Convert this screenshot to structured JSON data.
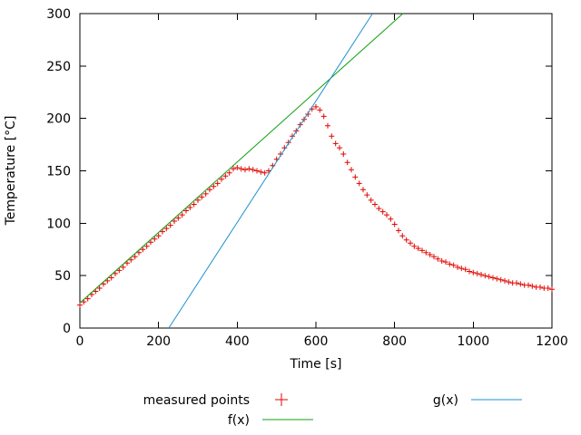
{
  "chart_data": {
    "type": "scatter+line",
    "title": "",
    "xlabel": "Time [s]",
    "ylabel": "Temperature [°C]",
    "xlim": [
      0,
      1200
    ],
    "ylim": [
      0,
      300
    ],
    "xticks": [
      0,
      200,
      400,
      600,
      800,
      1000,
      1200
    ],
    "yticks": [
      0,
      50,
      100,
      150,
      200,
      250,
      300
    ],
    "grid": false,
    "legend_position": "below-center",
    "legend": [
      {
        "label": "measured points",
        "sample": "marker-plus",
        "color": "#e10600"
      },
      {
        "label": "f(x)",
        "sample": "line",
        "color": "#0fa00f"
      },
      {
        "label": "g(x)",
        "sample": "line",
        "color": "#1e90cf"
      }
    ],
    "series": [
      {
        "name": "measured points",
        "type": "scatter",
        "marker": "+",
        "color": "#e10600",
        "points": [
          [
            0,
            22
          ],
          [
            10,
            25
          ],
          [
            20,
            28
          ],
          [
            30,
            32
          ],
          [
            40,
            35
          ],
          [
            50,
            38
          ],
          [
            60,
            42
          ],
          [
            70,
            45
          ],
          [
            80,
            48
          ],
          [
            90,
            52
          ],
          [
            100,
            55
          ],
          [
            110,
            58
          ],
          [
            120,
            62
          ],
          [
            130,
            65
          ],
          [
            140,
            68
          ],
          [
            150,
            72
          ],
          [
            160,
            75
          ],
          [
            170,
            78
          ],
          [
            180,
            82
          ],
          [
            190,
            85
          ],
          [
            200,
            88
          ],
          [
            210,
            92
          ],
          [
            220,
            95
          ],
          [
            230,
            98
          ],
          [
            240,
            102
          ],
          [
            250,
            105
          ],
          [
            260,
            108
          ],
          [
            270,
            112
          ],
          [
            280,
            115
          ],
          [
            290,
            118
          ],
          [
            300,
            122
          ],
          [
            310,
            125
          ],
          [
            320,
            128
          ],
          [
            330,
            132
          ],
          [
            340,
            135
          ],
          [
            350,
            138
          ],
          [
            360,
            142
          ],
          [
            370,
            145
          ],
          [
            380,
            148
          ],
          [
            390,
            152
          ],
          [
            400,
            153
          ],
          [
            410,
            152
          ],
          [
            420,
            151
          ],
          [
            430,
            152
          ],
          [
            440,
            151
          ],
          [
            450,
            150
          ],
          [
            460,
            149
          ],
          [
            470,
            148
          ],
          [
            480,
            150
          ],
          [
            490,
            155
          ],
          [
            500,
            161
          ],
          [
            510,
            166
          ],
          [
            520,
            172
          ],
          [
            530,
            177
          ],
          [
            540,
            183
          ],
          [
            550,
            188
          ],
          [
            560,
            194
          ],
          [
            570,
            199
          ],
          [
            580,
            204
          ],
          [
            590,
            209
          ],
          [
            600,
            211
          ],
          [
            610,
            208
          ],
          [
            620,
            202
          ],
          [
            630,
            193
          ],
          [
            640,
            183
          ],
          [
            650,
            176
          ],
          [
            660,
            172
          ],
          [
            670,
            166
          ],
          [
            680,
            158
          ],
          [
            690,
            151
          ],
          [
            700,
            144
          ],
          [
            710,
            138
          ],
          [
            720,
            132
          ],
          [
            730,
            127
          ],
          [
            740,
            122
          ],
          [
            750,
            118
          ],
          [
            760,
            114
          ],
          [
            770,
            111
          ],
          [
            780,
            108
          ],
          [
            790,
            104
          ],
          [
            800,
            99
          ],
          [
            810,
            93
          ],
          [
            820,
            88
          ],
          [
            830,
            84
          ],
          [
            840,
            81
          ],
          [
            850,
            78
          ],
          [
            860,
            76
          ],
          [
            870,
            74
          ],
          [
            880,
            72
          ],
          [
            890,
            70
          ],
          [
            900,
            68
          ],
          [
            910,
            66
          ],
          [
            920,
            64
          ],
          [
            930,
            63
          ],
          [
            940,
            61
          ],
          [
            950,
            60
          ],
          [
            960,
            58
          ],
          [
            970,
            57
          ],
          [
            980,
            56
          ],
          [
            990,
            54
          ],
          [
            1000,
            53
          ],
          [
            1010,
            52
          ],
          [
            1020,
            51
          ],
          [
            1030,
            50
          ],
          [
            1040,
            49
          ],
          [
            1050,
            48
          ],
          [
            1060,
            47
          ],
          [
            1070,
            46
          ],
          [
            1080,
            45
          ],
          [
            1090,
            44
          ],
          [
            1100,
            43
          ],
          [
            1110,
            43
          ],
          [
            1120,
            42
          ],
          [
            1130,
            41
          ],
          [
            1140,
            41
          ],
          [
            1150,
            40
          ],
          [
            1160,
            39
          ],
          [
            1170,
            39
          ],
          [
            1180,
            38
          ],
          [
            1190,
            38
          ],
          [
            1200,
            37
          ]
        ]
      },
      {
        "name": "f(x)",
        "type": "line",
        "color": "#0fa00f",
        "points": [
          [
            0,
            24
          ],
          [
            821,
            300
          ]
        ]
      },
      {
        "name": "g(x)",
        "type": "line",
        "color": "#1e90cf",
        "points": [
          [
            226,
            0
          ],
          [
            744,
            300
          ]
        ]
      }
    ]
  }
}
